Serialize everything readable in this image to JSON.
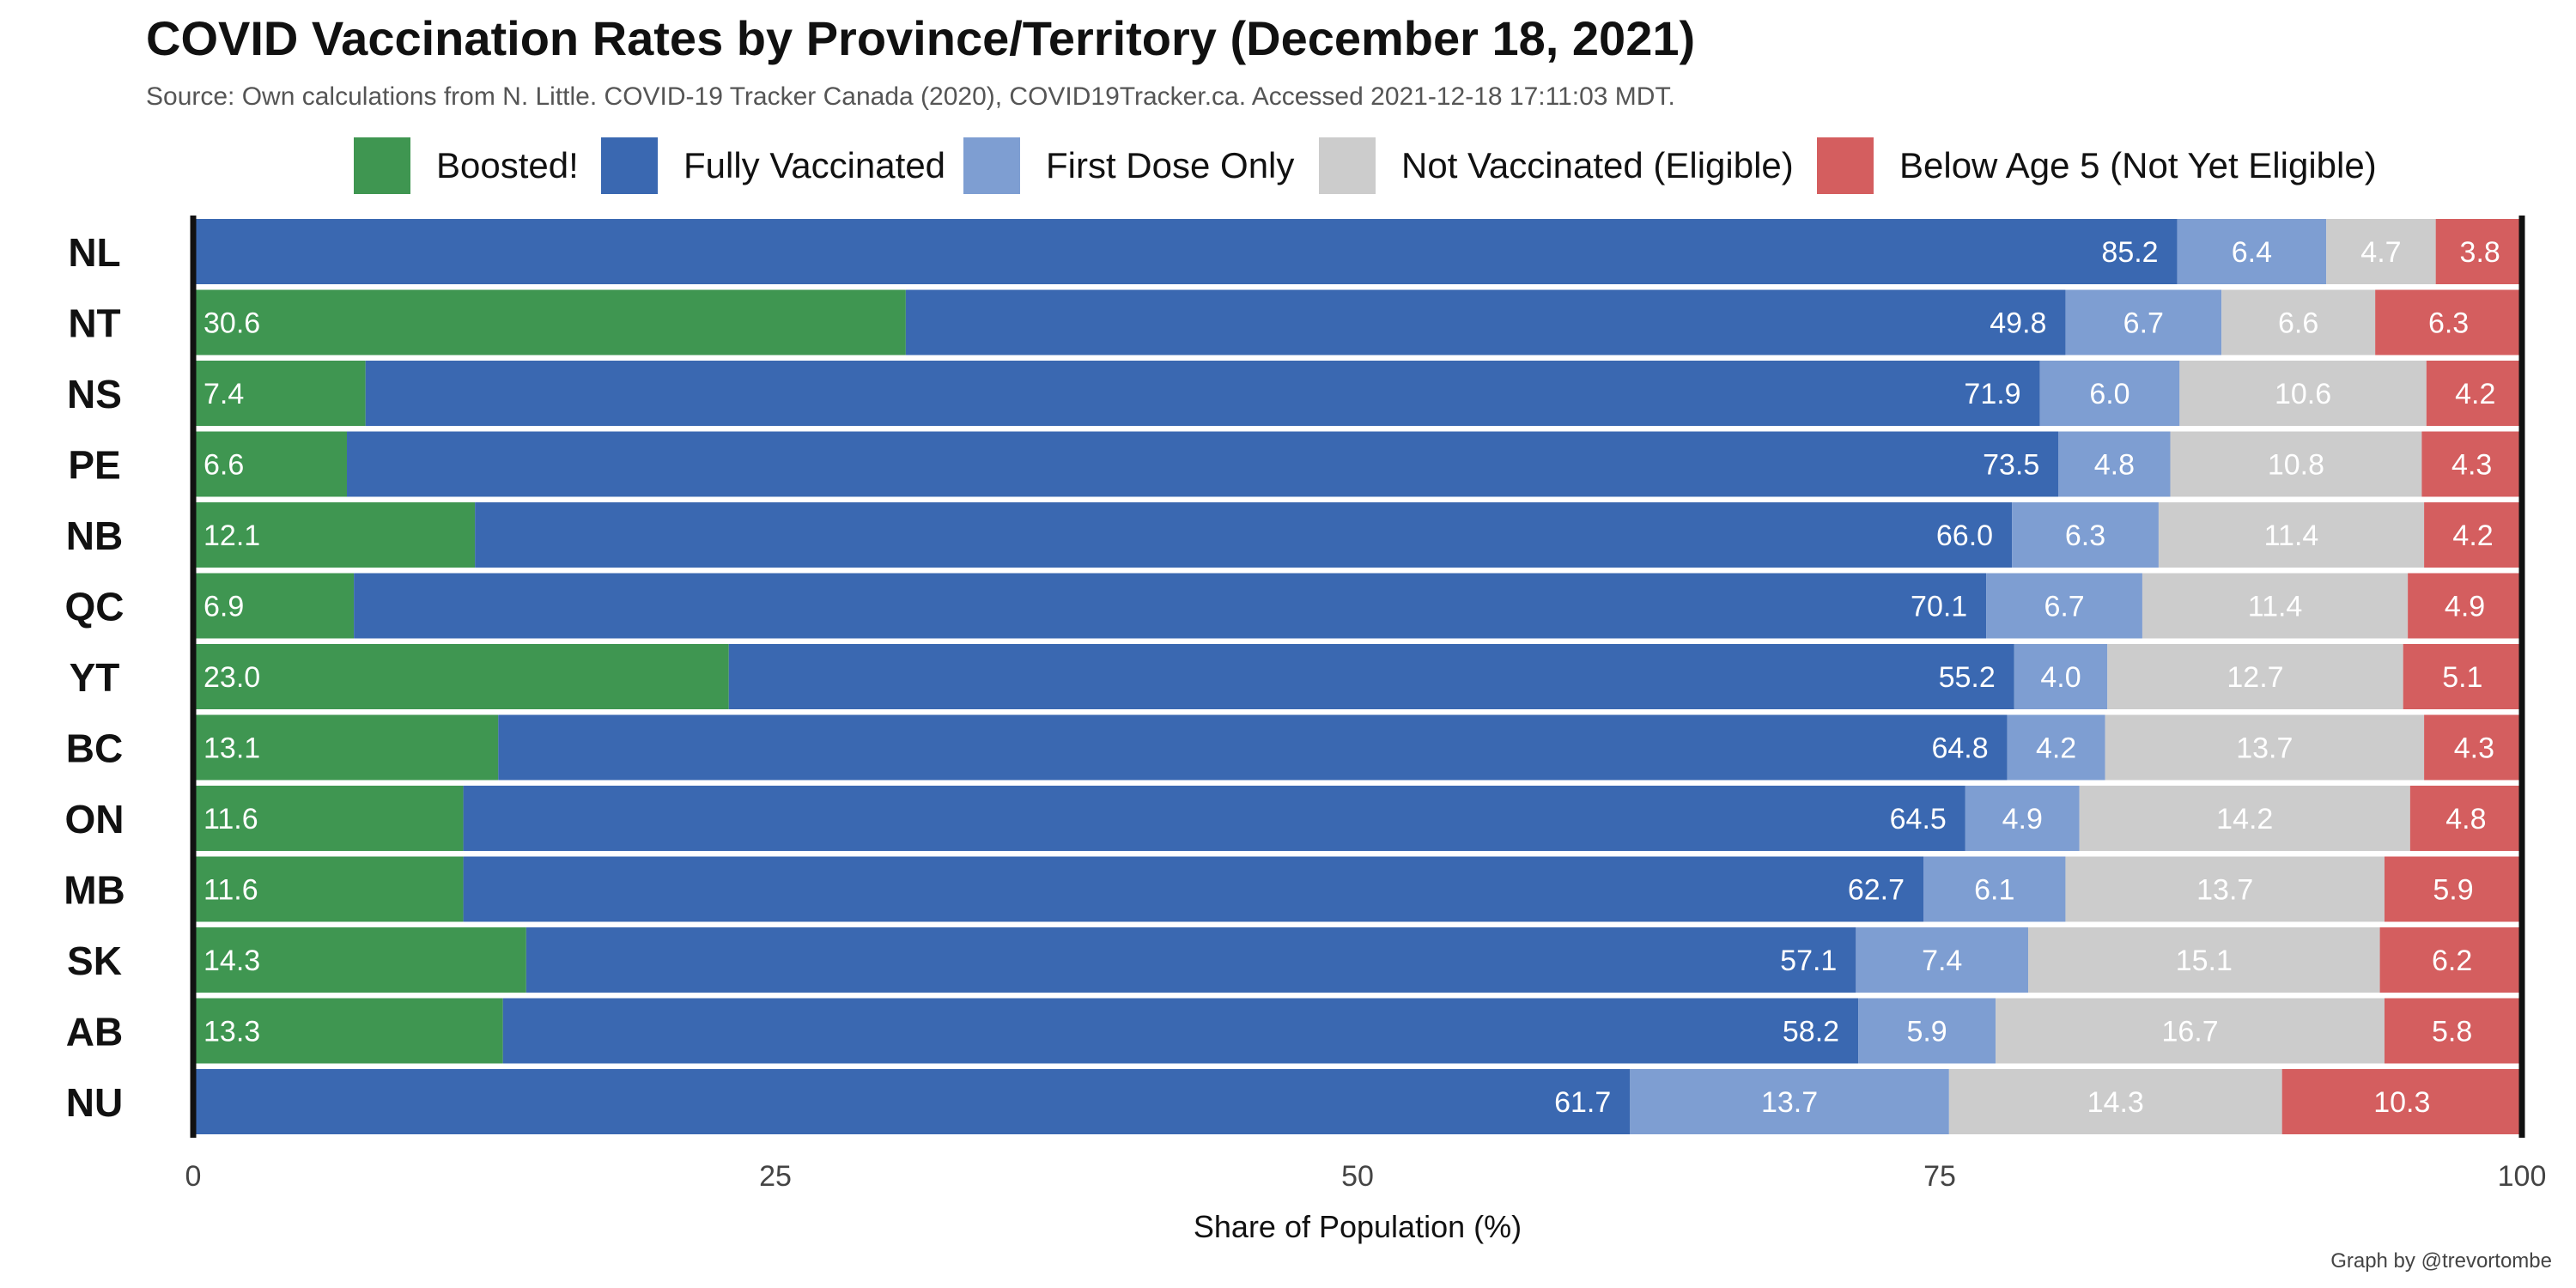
{
  "title": "COVID Vaccination Rates by Province/Territory (December 18, 2021)",
  "subtitle": "Source: Own calculations from N. Little. COVID-19 Tracker Canada (2020), COVID19Tracker.ca. Accessed 2021-12-18 17:11:03 MDT.",
  "credit": "Graph by @trevortombe",
  "colors": {
    "boosted": "#3f9651",
    "fully": "#3a68b1",
    "first": "#7e9ed2",
    "not_vaccinated": "#cccccc",
    "below5": "#d45e5f"
  },
  "legend": [
    {
      "key": "boosted",
      "label": "Boosted!"
    },
    {
      "key": "fully",
      "label": "Fully Vaccinated"
    },
    {
      "key": "first",
      "label": "First Dose Only"
    },
    {
      "key": "not_vaccinated",
      "label": "Not Vaccinated (Eligible)"
    },
    {
      "key": "below5",
      "label": "Below Age 5 (Not Yet Eligible)"
    }
  ],
  "chart_data": {
    "type": "bar",
    "orientation": "horizontal",
    "stacked": true,
    "title": "COVID Vaccination Rates by Province/Territory (December 18, 2021)",
    "xlabel": "Share of Population (%)",
    "ylabel": "",
    "xlim": [
      0,
      100
    ],
    "xticks": [
      0,
      25,
      50,
      75,
      100
    ],
    "legend_position": "top",
    "categories": [
      "NL",
      "NT",
      "NS",
      "PE",
      "NB",
      "QC",
      "YT",
      "BC",
      "ON",
      "MB",
      "SK",
      "AB",
      "NU"
    ],
    "series": [
      {
        "key": "boosted",
        "name": "Boosted!",
        "values": [
          null,
          30.6,
          7.4,
          6.6,
          12.1,
          6.9,
          23.0,
          13.1,
          11.6,
          11.6,
          14.3,
          13.3,
          null
        ],
        "labels": [
          "n/a",
          "30.6",
          "7.4",
          "6.6",
          "12.1",
          "6.9",
          "23.0",
          "13.1",
          "11.6",
          "11.6",
          "14.3",
          "13.3",
          "n/a"
        ]
      },
      {
        "key": "fully",
        "name": "Fully Vaccinated",
        "values": [
          85.2,
          49.8,
          71.9,
          73.5,
          66.0,
          70.1,
          55.2,
          64.8,
          64.5,
          62.7,
          57.1,
          58.2,
          61.7
        ],
        "labels": [
          "85.2",
          "49.8",
          "71.9",
          "73.5",
          "66.0",
          "70.1",
          "55.2",
          "64.8",
          "64.5",
          "62.7",
          "57.1",
          "58.2",
          "61.7"
        ]
      },
      {
        "key": "first",
        "name": "First Dose Only",
        "values": [
          6.4,
          6.7,
          6.0,
          4.8,
          6.3,
          6.7,
          4.0,
          4.2,
          4.9,
          6.1,
          7.4,
          5.9,
          13.7
        ],
        "labels": [
          "6.4",
          "6.7",
          "6.0",
          "4.8",
          "6.3",
          "6.7",
          "4.0",
          "4.2",
          "4.9",
          "6.1",
          "7.4",
          "5.9",
          "13.7"
        ]
      },
      {
        "key": "not_vaccinated",
        "name": "Not Vaccinated (Eligible)",
        "values": [
          4.7,
          6.6,
          10.6,
          10.8,
          11.4,
          11.4,
          12.7,
          13.7,
          14.2,
          13.7,
          15.1,
          16.7,
          14.3
        ],
        "labels": [
          "4.7",
          "6.6",
          "10.6",
          "10.8",
          "11.4",
          "11.4",
          "12.7",
          "13.7",
          "14.2",
          "13.7",
          "15.1",
          "16.7",
          "14.3"
        ]
      },
      {
        "key": "below5",
        "name": "Below Age 5 (Not Yet Eligible)",
        "values": [
          3.8,
          6.3,
          4.2,
          4.3,
          4.2,
          4.9,
          5.1,
          4.3,
          4.8,
          5.9,
          6.2,
          5.8,
          10.3
        ],
        "labels": [
          "3.8",
          "6.3",
          "4.2",
          "4.3",
          "4.2",
          "4.9",
          "5.1",
          "4.3",
          "4.8",
          "5.9",
          "6.2",
          "5.8",
          "10.3"
        ]
      }
    ]
  }
}
